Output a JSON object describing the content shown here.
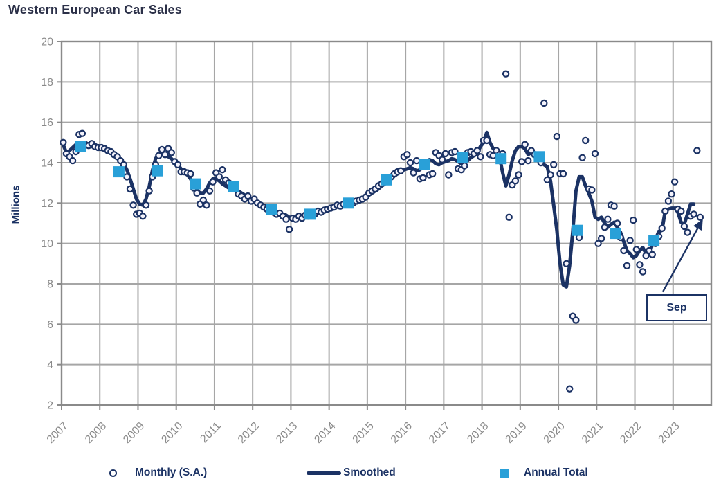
{
  "title": "Western European Car Sales",
  "colors": {
    "navy": "#1b3264",
    "title_text": "#2b3048",
    "annual_square": "#29a0d8",
    "point_fill": "#f4f3fb",
    "grid": "#a6a6a6",
    "axis_border": "#8a8a8a",
    "tick_text": "#8a8a8a",
    "background": "#ffffff"
  },
  "legend": {
    "items": [
      {
        "label": "Monthly (S.A.)",
        "marker": "circle-icon"
      },
      {
        "label": "Smoothed",
        "marker": "line-icon"
      },
      {
        "label": "Annual Total",
        "marker": "square-icon"
      }
    ]
  },
  "chart_data": {
    "type": "line",
    "title": "Western European Car Sales",
    "xlabel": "",
    "ylabel": "Millions",
    "ylim": [
      2,
      20
    ],
    "xlim": [
      2007,
      2024
    ],
    "yticks": [
      2,
      4,
      6,
      8,
      10,
      12,
      14,
      16,
      18,
      20
    ],
    "xticks": [
      2007,
      2008,
      2009,
      2010,
      2011,
      2012,
      2013,
      2014,
      2015,
      2016,
      2017,
      2018,
      2019,
      2020,
      2021,
      2022,
      2023
    ],
    "grid": true,
    "legend_position": "bottom",
    "units": "millions of vehicles, seasonally adjusted annual rate",
    "series": [
      {
        "name": "Monthly (S.A.)",
        "type": "scatter",
        "monthly": {
          "2007": [
            15.0,
            14.45,
            14.3,
            14.1,
            14.55,
            15.4,
            15.45,
            14.9,
            14.85,
            14.95,
            14.8,
            14.75
          ],
          "2008": [
            14.75,
            14.7,
            14.6,
            14.55,
            14.4,
            14.3,
            14.1,
            13.9,
            13.3,
            12.7,
            11.9,
            11.45
          ],
          "2009": [
            11.5,
            11.35,
            11.9,
            12.6,
            13.3,
            13.9,
            14.35,
            14.65,
            14.4,
            14.7,
            14.5,
            14.05
          ],
          "2010": [
            13.9,
            13.55,
            13.55,
            13.5,
            13.45,
            12.75,
            12.5,
            11.95,
            12.15,
            11.9,
            12.6,
            13.05
          ],
          "2011": [
            13.5,
            13.3,
            13.65,
            13.15,
            13.0,
            12.9,
            12.8,
            12.45,
            12.35,
            12.2,
            12.35,
            12.1
          ],
          "2012": [
            12.2,
            12.0,
            11.9,
            11.8,
            11.7,
            11.6,
            11.55,
            11.45,
            11.5,
            11.35,
            11.2,
            10.7
          ],
          "2013": [
            11.25,
            11.2,
            11.35,
            11.25,
            11.4,
            11.35,
            11.5,
            11.45,
            11.6,
            11.55,
            11.65,
            11.7
          ],
          "2014": [
            11.75,
            11.8,
            11.9,
            11.85,
            11.95,
            12.0,
            12.05,
            12.0,
            12.1,
            12.15,
            12.2,
            12.3
          ],
          "2015": [
            12.5,
            12.6,
            12.7,
            12.85,
            12.95,
            13.1,
            13.2,
            13.3,
            13.45,
            13.55,
            13.6,
            14.3
          ],
          "2016": [
            14.4,
            14.0,
            13.5,
            14.1,
            13.2,
            13.25,
            14.0,
            13.4,
            13.45,
            14.5,
            14.35,
            14.15
          ],
          "2017": [
            14.45,
            13.4,
            14.5,
            14.55,
            13.7,
            13.65,
            13.85,
            14.5,
            14.55,
            14.45,
            14.6,
            14.3
          ],
          "2018": [
            15.1,
            15.1,
            14.4,
            14.35,
            14.6,
            14.4,
            14.45,
            18.4,
            11.3,
            12.9,
            13.1,
            13.4
          ],
          "2019": [
            14.05,
            14.9,
            14.1,
            14.6,
            14.4,
            14.3,
            14.0,
            16.95,
            13.15,
            13.4,
            13.9,
            15.3
          ],
          "2020": [
            13.45,
            13.45,
            9.0,
            2.8,
            6.4,
            6.2,
            10.3,
            14.25,
            15.1,
            12.7,
            12.65,
            14.45
          ],
          "2021": [
            10.0,
            10.25,
            10.8,
            11.2,
            11.9,
            11.85,
            11.0,
            10.3,
            9.65,
            8.9,
            10.15,
            11.15
          ],
          "2022": [
            9.7,
            8.95,
            8.6,
            9.4,
            9.65,
            9.45,
            10.0,
            10.35,
            10.75,
            11.6,
            12.1,
            12.45
          ],
          "2023": [
            13.05,
            11.7,
            11.6,
            10.85,
            10.55,
            11.35,
            11.45,
            14.6,
            11.3
          ]
        }
      },
      {
        "name": "Smoothed",
        "type": "line",
        "monthly": {
          "2007": [
            14.9,
            14.5,
            14.6,
            14.75,
            14.9,
            15.0,
            14.95,
            14.9,
            14.85,
            14.8,
            14.8,
            14.75
          ],
          "2008": [
            14.7,
            14.65,
            14.6,
            14.5,
            14.4,
            14.3,
            14.15,
            13.95,
            13.65,
            13.2,
            12.7,
            12.2
          ],
          "2009": [
            11.95,
            11.9,
            12.2,
            12.8,
            13.6,
            14.2,
            14.45,
            14.4,
            14.35,
            14.3,
            14.2,
            14.05
          ],
          "2010": [
            13.9,
            13.7,
            13.55,
            13.4,
            13.2,
            12.9,
            12.65,
            12.5,
            12.5,
            12.7,
            13.0,
            13.2
          ],
          "2011": [
            13.2,
            13.1,
            12.95,
            12.85,
            12.75,
            12.7,
            12.65,
            12.6,
            12.5,
            12.4,
            12.3,
            12.2
          ],
          "2012": [
            12.15,
            12.05,
            11.95,
            11.85,
            11.75,
            11.7,
            11.65,
            11.55,
            11.5,
            11.45,
            11.4,
            11.3
          ],
          "2013": [
            11.2,
            11.2,
            11.25,
            11.3,
            11.3,
            11.35,
            11.4,
            11.45,
            11.5,
            11.55,
            11.6,
            11.65
          ],
          "2014": [
            11.7,
            11.75,
            11.8,
            11.85,
            11.9,
            11.95,
            12.0,
            12.05,
            12.1,
            12.15,
            12.2,
            12.3
          ],
          "2015": [
            12.4,
            12.5,
            12.6,
            12.7,
            12.85,
            12.95,
            13.1,
            13.2,
            13.35,
            13.45,
            13.55,
            13.65
          ],
          "2016": [
            13.7,
            13.75,
            13.7,
            13.6,
            13.65,
            13.8,
            14.0,
            14.15,
            14.1,
            13.95,
            13.9,
            14.0
          ],
          "2017": [
            14.05,
            14.1,
            14.2,
            14.15,
            14.05,
            13.95,
            14.0,
            14.1,
            14.25,
            14.35,
            14.5,
            14.8
          ],
          "2018": [
            15.0,
            15.5,
            15.0,
            14.7,
            14.55,
            14.3,
            13.5,
            12.85,
            13.4,
            14.1,
            14.6,
            14.8
          ],
          "2019": [
            14.8,
            14.7,
            14.4,
            14.5,
            14.35,
            14.3,
            14.3,
            13.9,
            13.8,
            13.1,
            11.9,
            10.65
          ],
          "2020": [
            9.0,
            7.95,
            7.85,
            8.9,
            10.6,
            12.6,
            13.3,
            13.3,
            12.85,
            12.5,
            12.1,
            11.3
          ],
          "2021": [
            11.2,
            11.3,
            11.0,
            10.8,
            10.95,
            11.05,
            10.8,
            10.55,
            10.1,
            9.65,
            9.5,
            9.3
          ],
          "2022": [
            9.4,
            9.65,
            9.8,
            9.5,
            9.45,
            9.95,
            10.2,
            10.6,
            10.65,
            11.6,
            11.7,
            11.75
          ],
          "2023": [
            11.75,
            11.55,
            11.05,
            10.95,
            11.45,
            11.95,
            11.95
          ]
        }
      },
      {
        "name": "Annual Total",
        "type": "scatter",
        "marker": "square",
        "annual": {
          "2007": 14.8,
          "2008": 13.55,
          "2009": 13.6,
          "2010": 12.95,
          "2011": 12.8,
          "2012": 11.7,
          "2013": 11.45,
          "2014": 12.0,
          "2015": 13.15,
          "2016": 13.9,
          "2017": 14.25,
          "2018": 14.2,
          "2019": 14.3,
          "2020": 10.65,
          "2021": 10.5,
          "2022": 10.15
        }
      }
    ],
    "annotation": {
      "label": "Sep",
      "points_to": "September 2023 monthly value",
      "arrow_from": [
        2022.73,
        7.6
      ],
      "arrow_to": [
        2023.76,
        11.15
      ]
    }
  }
}
